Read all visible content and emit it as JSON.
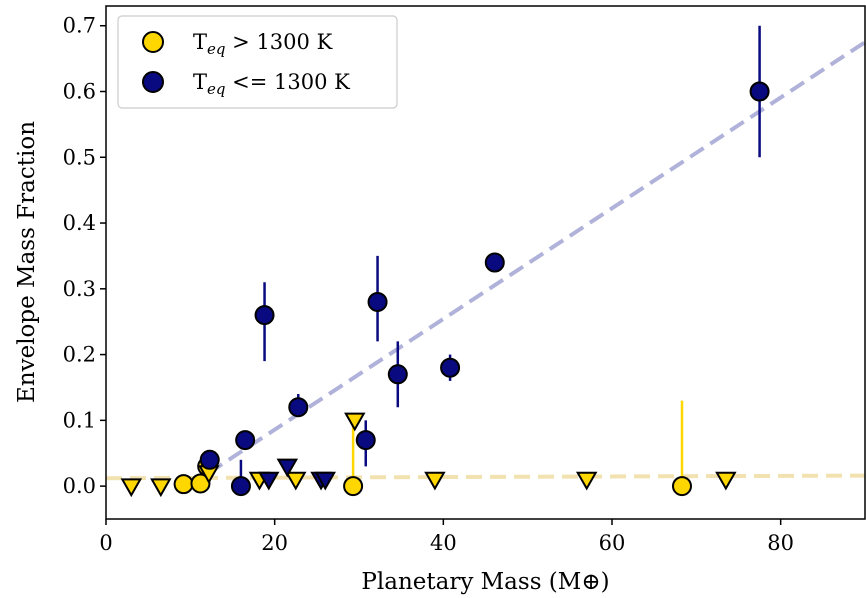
{
  "chart_data": {
    "type": "scatter",
    "title": "",
    "xlabel": "Planetary Mass (M⊕)",
    "ylabel": "Envelope Mass Fraction",
    "xlim": [
      0,
      90
    ],
    "ylim": [
      -0.05,
      0.73
    ],
    "xticks": [
      0,
      20,
      40,
      60,
      80
    ],
    "xtick_labels": [
      "0",
      "20",
      "40",
      "60",
      "80"
    ],
    "yticks": [
      0.0,
      0.1,
      0.2,
      0.3,
      0.4,
      0.5,
      0.6,
      0.7
    ],
    "ytick_labels": [
      "0.0",
      "0.1",
      "0.2",
      "0.3",
      "0.4",
      "0.5",
      "0.6",
      "0.7"
    ],
    "grid": false,
    "legend_position": "top-left",
    "series": [
      {
        "name": "T_eq > 1300 K",
        "legend_label_main": "T",
        "legend_label_sub": "eq",
        "legend_label_rest": " > 1300 K",
        "color": "#FFD700",
        "marker": "circle",
        "points": [
          {
            "x": 9.2,
            "y": 0.003
          },
          {
            "x": 11.2,
            "y": 0.004
          },
          {
            "x": 12.0,
            "y": 0.03
          },
          {
            "x": 29.3,
            "y": 0.0,
            "err_lo": 0.0,
            "err_hi": 0.1
          },
          {
            "x": 68.3,
            "y": 0.0,
            "err_lo": 0.0,
            "err_hi": 0.13
          }
        ]
      },
      {
        "name": "T_eq > 1300 K (upper limits)",
        "color": "#FFD700",
        "marker": "triangle-down",
        "points": [
          {
            "x": 3.0,
            "y": 0.0
          },
          {
            "x": 6.5,
            "y": 0.0
          },
          {
            "x": 12.2,
            "y": 0.02
          },
          {
            "x": 18.2,
            "y": 0.01
          },
          {
            "x": 22.5,
            "y": 0.01
          },
          {
            "x": 29.5,
            "y": 0.1
          },
          {
            "x": 39.0,
            "y": 0.01
          },
          {
            "x": 57.0,
            "y": 0.01
          },
          {
            "x": 73.5,
            "y": 0.01
          }
        ]
      },
      {
        "name": "T_eq <= 1300 K",
        "legend_label_main": "T",
        "legend_label_sub": "eq",
        "legend_label_rest": " <= 1300 K",
        "color": "#0A0A80",
        "marker": "circle",
        "points": [
          {
            "x": 12.3,
            "y": 0.04
          },
          {
            "x": 16.0,
            "y": 0.0,
            "err_lo": 0.0,
            "err_hi": 0.04
          },
          {
            "x": 16.5,
            "y": 0.07
          },
          {
            "x": 18.8,
            "y": 0.26,
            "err_lo": 0.07,
            "err_hi": 0.05
          },
          {
            "x": 22.8,
            "y": 0.12,
            "err_lo": 0.01,
            "err_hi": 0.02
          },
          {
            "x": 30.8,
            "y": 0.07,
            "err_lo": 0.04,
            "err_hi": 0.03
          },
          {
            "x": 32.2,
            "y": 0.28,
            "err_lo": 0.06,
            "err_hi": 0.07
          },
          {
            "x": 34.6,
            "y": 0.17,
            "err_lo": 0.05,
            "err_hi": 0.05
          },
          {
            "x": 40.8,
            "y": 0.18,
            "err_lo": 0.02,
            "err_hi": 0.02
          },
          {
            "x": 46.1,
            "y": 0.34
          },
          {
            "x": 77.5,
            "y": 0.6,
            "err_lo": 0.1,
            "err_hi": 0.1
          }
        ]
      },
      {
        "name": "T_eq <= 1300 K (upper limits)",
        "color": "#0A0A80",
        "marker": "triangle-down",
        "points": [
          {
            "x": 19.3,
            "y": 0.01
          },
          {
            "x": 21.5,
            "y": 0.03
          },
          {
            "x": 25.5,
            "y": 0.01
          },
          {
            "x": 26.0,
            "y": 0.01
          }
        ]
      }
    ],
    "trend_lines": [
      {
        "color": "#B0B2DA",
        "style": "dashed",
        "x": [
          9.8,
          90
        ],
        "y": [
          0.0,
          0.675
        ]
      },
      {
        "color": "#F2E2B0",
        "style": "dashed",
        "x": [
          0,
          90
        ],
        "y": [
          0.012,
          0.016
        ]
      }
    ]
  }
}
